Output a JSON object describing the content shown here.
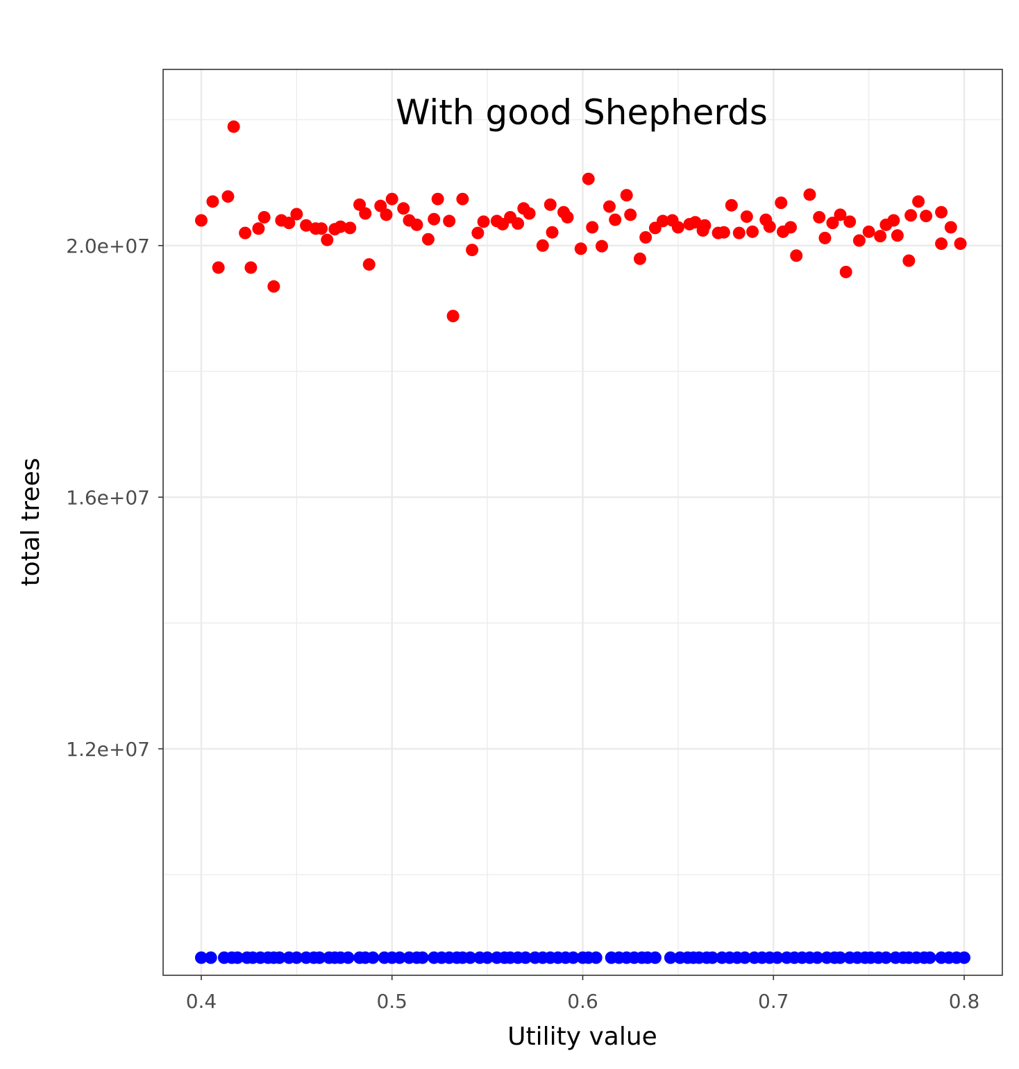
{
  "chart_data": {
    "type": "scatter",
    "annotation": "With good Shepherds",
    "xlabel": "Utility value",
    "ylabel": "total trees",
    "xlim": [
      0.38,
      0.82
    ],
    "ylim": [
      8400000,
      22800000
    ],
    "x_ticks": [
      0.4,
      0.5,
      0.6,
      0.7,
      0.8
    ],
    "x_tick_labels": [
      "0.4",
      "0.5",
      "0.6",
      "0.7",
      "0.8"
    ],
    "x_minor": [
      0.45,
      0.55,
      0.65,
      0.75
    ],
    "y_ticks": [
      12000000,
      16000000,
      20000000
    ],
    "y_tick_labels": [
      "1.2e+07",
      "1.6e+07",
      "2.0e+07"
    ],
    "y_minor": [
      10000000,
      14000000,
      18000000,
      22000000
    ],
    "grid": true,
    "series": [
      {
        "color": "#ff0000",
        "points": [
          [
            0.4,
            20400000
          ],
          [
            0.406,
            20700000
          ],
          [
            0.409,
            19650000
          ],
          [
            0.414,
            20780000
          ],
          [
            0.417,
            21890000
          ],
          [
            0.423,
            20200000
          ],
          [
            0.426,
            19650000
          ],
          [
            0.43,
            20270000
          ],
          [
            0.433,
            20450000
          ],
          [
            0.438,
            19350000
          ],
          [
            0.442,
            20400000
          ],
          [
            0.446,
            20360000
          ],
          [
            0.45,
            20500000
          ],
          [
            0.455,
            20320000
          ],
          [
            0.46,
            20270000
          ],
          [
            0.463,
            20270000
          ],
          [
            0.466,
            20090000
          ],
          [
            0.47,
            20260000
          ],
          [
            0.473,
            20300000
          ],
          [
            0.478,
            20280000
          ],
          [
            0.483,
            20650000
          ],
          [
            0.486,
            20510000
          ],
          [
            0.488,
            19700000
          ],
          [
            0.494,
            20630000
          ],
          [
            0.497,
            20490000
          ],
          [
            0.5,
            20740000
          ],
          [
            0.506,
            20590000
          ],
          [
            0.509,
            20400000
          ],
          [
            0.513,
            20330000
          ],
          [
            0.519,
            20100000
          ],
          [
            0.522,
            20420000
          ],
          [
            0.524,
            20740000
          ],
          [
            0.53,
            20390000
          ],
          [
            0.532,
            18880000
          ],
          [
            0.537,
            20740000
          ],
          [
            0.542,
            19930000
          ],
          [
            0.545,
            20200000
          ],
          [
            0.548,
            20380000
          ],
          [
            0.555,
            20390000
          ],
          [
            0.558,
            20340000
          ],
          [
            0.562,
            20450000
          ],
          [
            0.566,
            20350000
          ],
          [
            0.569,
            20590000
          ],
          [
            0.572,
            20510000
          ],
          [
            0.579,
            20000000
          ],
          [
            0.583,
            20650000
          ],
          [
            0.584,
            20210000
          ],
          [
            0.59,
            20530000
          ],
          [
            0.592,
            20450000
          ],
          [
            0.599,
            19950000
          ],
          [
            0.603,
            21060000
          ],
          [
            0.605,
            20290000
          ],
          [
            0.61,
            19990000
          ],
          [
            0.614,
            20620000
          ],
          [
            0.617,
            20410000
          ],
          [
            0.623,
            20800000
          ],
          [
            0.625,
            20490000
          ],
          [
            0.63,
            19790000
          ],
          [
            0.633,
            20130000
          ],
          [
            0.638,
            20280000
          ],
          [
            0.642,
            20390000
          ],
          [
            0.647,
            20400000
          ],
          [
            0.65,
            20290000
          ],
          [
            0.656,
            20340000
          ],
          [
            0.659,
            20370000
          ],
          [
            0.663,
            20240000
          ],
          [
            0.664,
            20320000
          ],
          [
            0.671,
            20200000
          ],
          [
            0.674,
            20210000
          ],
          [
            0.678,
            20640000
          ],
          [
            0.682,
            20200000
          ],
          [
            0.686,
            20460000
          ],
          [
            0.689,
            20220000
          ],
          [
            0.696,
            20410000
          ],
          [
            0.698,
            20300000
          ],
          [
            0.704,
            20680000
          ],
          [
            0.705,
            20220000
          ],
          [
            0.709,
            20290000
          ],
          [
            0.712,
            19840000
          ],
          [
            0.719,
            20810000
          ],
          [
            0.724,
            20450000
          ],
          [
            0.727,
            20120000
          ],
          [
            0.731,
            20360000
          ],
          [
            0.735,
            20490000
          ],
          [
            0.738,
            19580000
          ],
          [
            0.74,
            20380000
          ],
          [
            0.745,
            20080000
          ],
          [
            0.75,
            20220000
          ],
          [
            0.756,
            20150000
          ],
          [
            0.759,
            20330000
          ],
          [
            0.763,
            20400000
          ],
          [
            0.765,
            20160000
          ],
          [
            0.771,
            19760000
          ],
          [
            0.772,
            20480000
          ],
          [
            0.776,
            20700000
          ],
          [
            0.78,
            20470000
          ],
          [
            0.788,
            20530000
          ],
          [
            0.788,
            20030000
          ],
          [
            0.793,
            20290000
          ],
          [
            0.798,
            20030000
          ]
        ]
      },
      {
        "color": "#0000ff",
        "y_value": 8680000,
        "x_values": [
          0.4,
          0.405,
          0.412,
          0.416,
          0.419,
          0.424,
          0.427,
          0.431,
          0.435,
          0.438,
          0.441,
          0.446,
          0.45,
          0.455,
          0.459,
          0.462,
          0.467,
          0.47,
          0.473,
          0.477,
          0.483,
          0.486,
          0.49,
          0.496,
          0.5,
          0.504,
          0.509,
          0.513,
          0.516,
          0.522,
          0.526,
          0.53,
          0.534,
          0.537,
          0.541,
          0.546,
          0.55,
          0.555,
          0.559,
          0.562,
          0.566,
          0.57,
          0.575,
          0.579,
          0.583,
          0.587,
          0.591,
          0.595,
          0.6,
          0.603,
          0.607,
          0.615,
          0.619,
          0.623,
          0.627,
          0.631,
          0.634,
          0.638,
          0.646,
          0.651,
          0.655,
          0.658,
          0.661,
          0.665,
          0.668,
          0.673,
          0.677,
          0.681,
          0.685,
          0.69,
          0.694,
          0.698,
          0.702,
          0.707,
          0.711,
          0.715,
          0.719,
          0.723,
          0.728,
          0.732,
          0.735,
          0.74,
          0.744,
          0.748,
          0.751,
          0.755,
          0.759,
          0.764,
          0.768,
          0.771,
          0.775,
          0.779,
          0.782,
          0.788,
          0.792,
          0.796,
          0.8
        ]
      }
    ]
  }
}
